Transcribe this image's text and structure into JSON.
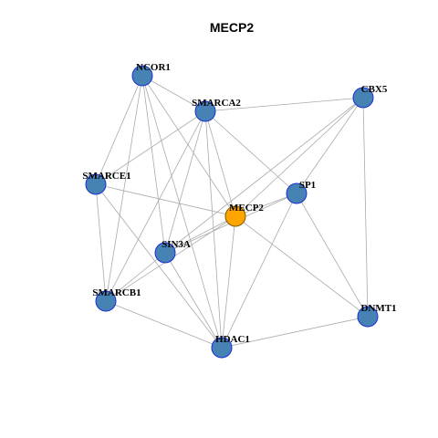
{
  "title": "MECP2",
  "nodes": [
    {
      "label": "NCOR1"
    },
    {
      "label": "SMARCA2"
    },
    {
      "label": "CBX5"
    },
    {
      "label": "SMARCE1"
    },
    {
      "label": "SP1"
    },
    {
      "label": "MECP2"
    },
    {
      "label": "SIN3A"
    },
    {
      "label": "SMARCB1"
    },
    {
      "label": "DNMT1"
    },
    {
      "label": "HDAC1"
    }
  ]
}
